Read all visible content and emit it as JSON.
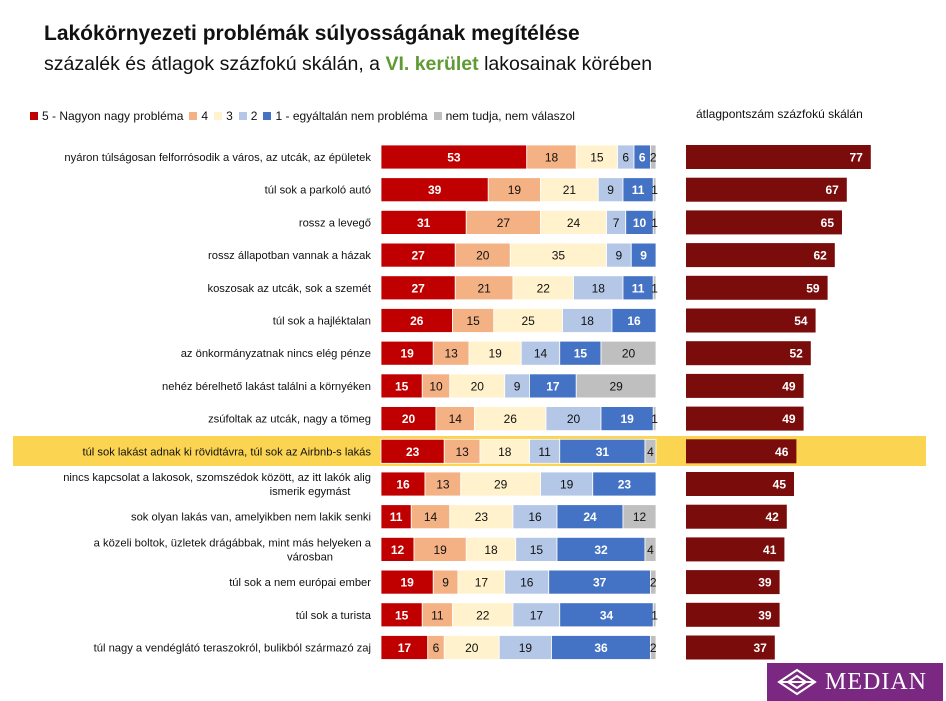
{
  "header": {
    "title": "Lakókörnyezeti problémák súlyosságának megítélése",
    "subtitle_pre": "százalék és átlagok százfokú skálán, a ",
    "subtitle_highlight": "VI. kerület",
    "subtitle_post": " lakosainak körében"
  },
  "legend": {
    "items": [
      {
        "label": "5 - Nagyon nagy probléma",
        "color": "#c00000"
      },
      {
        "label": "4",
        "color": "#f4b183"
      },
      {
        "label": "3",
        "color": "#fff2cc"
      },
      {
        "label": "2",
        "color": "#b4c7e7"
      },
      {
        "label": "1 - egyáltalán nem probléma",
        "color": "#4472c4"
      },
      {
        "label": "nem tudja, nem válaszol",
        "color": "#bfbfbf"
      }
    ]
  },
  "avg_header": "átlagpontszám százfokú skálán",
  "colors": {
    "avg_bar": "#7b0c0c",
    "highlight_row": "#fbd451",
    "subtitle_accent": "#5f9a33",
    "logo_bg": "#7a2882"
  },
  "logo": {
    "text": "MEDIAN"
  },
  "chart_data": {
    "type": "bar",
    "stacked": true,
    "orientation": "horizontal",
    "title": "Lakókörnyezeti problémák súlyosságának megítélése",
    "highlight_index": 9,
    "categories": [
      [
        "nyáron túlságosan felforrósodik a város, az utcák, az épületek"
      ],
      [
        "túl sok a parkoló autó"
      ],
      [
        "rossz a levegő"
      ],
      [
        "rossz állapotban vannak a házak"
      ],
      [
        "koszosak az utcák, sok a szemét"
      ],
      [
        "túl sok a hajléktalan"
      ],
      [
        "az önkormányzatnak nincs elég pénze"
      ],
      [
        "nehéz bérelhető lakást találni a környéken"
      ],
      [
        "zsúfoltak az utcák, nagy a tömeg"
      ],
      [
        "túl sok lakást adnak ki rövidtávra, túl sok az Airbnb-s lakás"
      ],
      [
        "nincs kapcsolat a lakosok, szomszédok között, az itt lakók alig",
        "ismerik egymást"
      ],
      [
        "sok olyan lakás van, amelyikben nem lakik senki"
      ],
      [
        "a közeli boltok, üzletek drágábbak, mint más helyeken a",
        "városban"
      ],
      [
        "túl sok a nem európai ember"
      ],
      [
        "túl sok a turista"
      ],
      [
        "túl nagy a vendéglátó teraszokról, bulikból származó zaj"
      ]
    ],
    "series": [
      {
        "name": "5 - Nagyon nagy probléma",
        "color": "#c00000",
        "label_color": "#ffffff",
        "values": [
          53,
          39,
          31,
          27,
          27,
          26,
          19,
          15,
          20,
          23,
          16,
          11,
          12,
          19,
          15,
          17
        ]
      },
      {
        "name": "4",
        "color": "#f4b183",
        "label_color": "#111111",
        "values": [
          18,
          19,
          27,
          20,
          21,
          15,
          13,
          10,
          14,
          13,
          13,
          14,
          19,
          9,
          11,
          6
        ]
      },
      {
        "name": "3",
        "color": "#fff2cc",
        "label_color": "#111111",
        "values": [
          15,
          21,
          24,
          35,
          22,
          25,
          19,
          20,
          26,
          18,
          29,
          23,
          18,
          17,
          22,
          20
        ]
      },
      {
        "name": "2",
        "color": "#b4c7e7",
        "label_color": "#111111",
        "values": [
          6,
          9,
          7,
          9,
          18,
          18,
          14,
          9,
          20,
          11,
          19,
          16,
          15,
          16,
          17,
          19
        ]
      },
      {
        "name": "1 - egyáltalán nem probléma",
        "color": "#4472c4",
        "label_color": "#ffffff",
        "values": [
          6,
          11,
          10,
          9,
          11,
          16,
          15,
          17,
          19,
          31,
          23,
          24,
          32,
          37,
          34,
          36
        ]
      },
      {
        "name": "nem tudja, nem válaszol",
        "color": "#bfbfbf",
        "label_color": "#111111",
        "values": [
          2,
          1,
          1,
          0,
          1,
          0,
          20,
          29,
          1,
          4,
          0,
          12,
          4,
          2,
          1,
          2
        ]
      }
    ],
    "averages": [
      77,
      67,
      65,
      62,
      59,
      54,
      52,
      49,
      49,
      46,
      45,
      42,
      41,
      39,
      39,
      37
    ],
    "xlim": [
      0,
      100
    ],
    "avg_xlim": [
      0,
      100
    ]
  }
}
